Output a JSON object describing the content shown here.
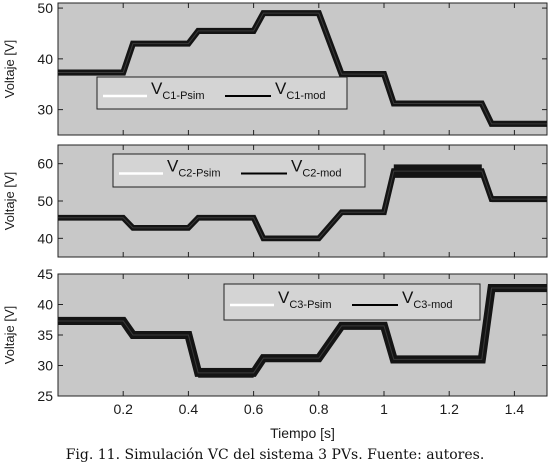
{
  "caption": "Fig. 11. Simulación VC del sistema 3 PVs. Fuente: autores.",
  "colors": {
    "plot_bg": "#c8c8c8",
    "trace": "#141414",
    "sim_line": "#ffffff",
    "mod_line": "#000000"
  },
  "chart_data": [
    {
      "type": "line",
      "ylabel": "Voltaje [V]",
      "xlabel": "",
      "xlim": [
        0,
        1.5
      ],
      "ylim": [
        25,
        51
      ],
      "yticks": [
        "30",
        "40",
        "50"
      ],
      "xticks": [
        "0.2",
        "0.4",
        "0.6",
        "0.8",
        "1",
        "1.2",
        "1.4"
      ],
      "grid": false,
      "legend_position": "middle-left",
      "series": [
        {
          "name_main": "V",
          "name_sub": "C1-Psim"
        },
        {
          "name_main": "V",
          "name_sub": "C1-mod"
        }
      ],
      "x": [
        0,
        0.2,
        0.23,
        0.4,
        0.43,
        0.6,
        0.63,
        0.8,
        0.87,
        1.0,
        1.03,
        1.3,
        1.33,
        1.5
      ],
      "y": [
        37.3,
        37.3,
        43,
        43,
        45.5,
        45.5,
        49,
        49,
        37,
        37,
        31.2,
        31.2,
        27.2,
        27.2
      ],
      "ripple": 0.4
    },
    {
      "type": "line",
      "ylabel": "Voltaje [V]",
      "xlabel": "",
      "xlim": [
        0,
        1.5
      ],
      "ylim": [
        35,
        65
      ],
      "yticks": [
        "40",
        "50",
        "60"
      ],
      "xticks": [
        "0.2",
        "0.4",
        "0.6",
        "0.8",
        "1",
        "1.2",
        "1.4"
      ],
      "grid": false,
      "legend_position": "top-center",
      "series": [
        {
          "name_main": "V",
          "name_sub": "C2-Psim"
        },
        {
          "name_main": "V",
          "name_sub": "C2-mod"
        }
      ],
      "x": [
        0,
        0.2,
        0.23,
        0.4,
        0.43,
        0.6,
        0.63,
        0.8,
        0.87,
        1.0,
        1.03,
        1.3,
        1.33,
        1.5
      ],
      "y": [
        45.5,
        45.5,
        42.8,
        42.8,
        45.5,
        45.5,
        40,
        40,
        47,
        47,
        58,
        58,
        50.5,
        50.5
      ],
      "ripple_segments": [
        0.5,
        0.5,
        0.5,
        0.5,
        0.5,
        0.5,
        0.5,
        0.5,
        0.5,
        0.5,
        1.8,
        1.8,
        0.8,
        0.8
      ]
    },
    {
      "type": "line",
      "ylabel": "Voltaje [V]",
      "xlabel": "Tiempo [s]",
      "xlim": [
        0,
        1.5
      ],
      "ylim": [
        25,
        45
      ],
      "yticks": [
        "25",
        "30",
        "35",
        "40",
        "45"
      ],
      "xticks": [
        "0.2",
        "0.4",
        "0.6",
        "0.8",
        "1",
        "1.2",
        "1.4"
      ],
      "grid": false,
      "legend_position": "top-right",
      "series": [
        {
          "name_main": "V",
          "name_sub": "C3-Psim"
        },
        {
          "name_main": "V",
          "name_sub": "C3-mod"
        }
      ],
      "x": [
        0,
        0.2,
        0.23,
        0.4,
        0.43,
        0.6,
        0.63,
        0.8,
        0.87,
        1.0,
        1.03,
        1.3,
        1.33,
        1.5
      ],
      "y": [
        37.3,
        37.3,
        35,
        35,
        28.8,
        28.8,
        31.2,
        31.2,
        36.5,
        36.5,
        31,
        31,
        42.7,
        42.7
      ],
      "ripple_segments": [
        0.4,
        0.4,
        0.4,
        0.4,
        0.8,
        0.8,
        0.4,
        0.4,
        0.4,
        0.4,
        0.4,
        0.4,
        0.5,
        0.5
      ]
    }
  ]
}
